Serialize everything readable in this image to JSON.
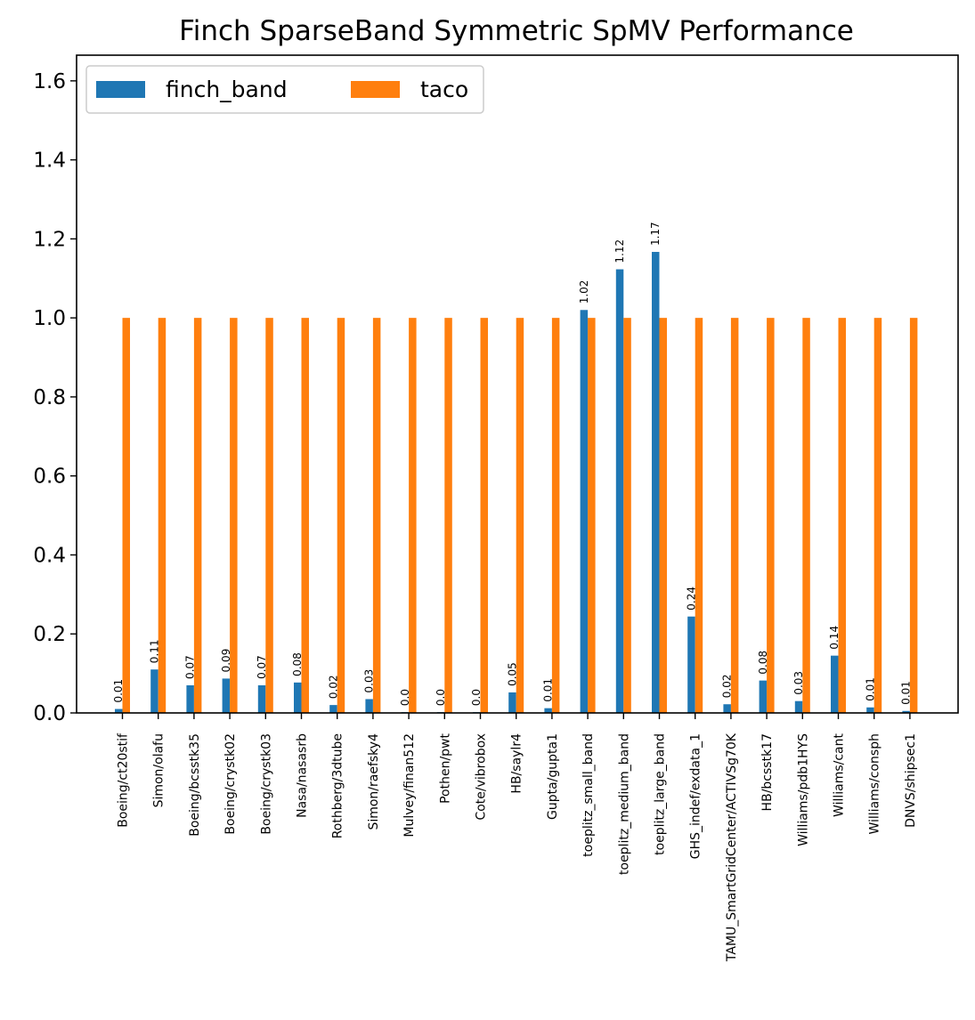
{
  "colors": {
    "finch_band": "#1f77b4",
    "taco": "#ff7f0e"
  },
  "chart_data": {
    "type": "bar",
    "title": "Finch SparseBand Symmetric SpMV Performance",
    "xlabel": "",
    "ylabel": "",
    "ylim": [
      0,
      1.665
    ],
    "yticks": [
      0.0,
      0.2,
      0.4,
      0.6,
      0.8,
      1.0,
      1.2,
      1.4,
      1.6
    ],
    "ytick_labels": [
      "0.0",
      "0.2",
      "0.4",
      "0.6",
      "0.8",
      "1.0",
      "1.2",
      "1.4",
      "1.6"
    ],
    "grid": false,
    "legend_position": "top-left",
    "legend_columns": 2,
    "categories": [
      "Boeing/ct20stif",
      "Simon/olafu",
      "Boeing/bcsstk35",
      "Boeing/crystk02",
      "Boeing/crystk03",
      "Nasa/nasasrb",
      "Rothberg/3dtube",
      "Simon/raefsky4",
      "Mulvey/finan512",
      "Pothen/pwt",
      "Cote/vibrobox",
      "HB/saylr4",
      "Gupta/gupta1",
      "toeplitz_small_band",
      "toeplitz_medium_band",
      "toeplitz_large_band",
      "GHS_indef/exdata_1",
      "TAMU_SmartGridCenter/ACTIVSg70K",
      "HB/bcsstk17",
      "Williams/pdb1HYS",
      "Williams/cant",
      "Williams/consph",
      "DNVS/shipsec1"
    ],
    "series": [
      {
        "name": "finch_band",
        "values": [
          0.01,
          0.11,
          0.07,
          0.087,
          0.07,
          0.077,
          0.02,
          0.035,
          0.002,
          0.002,
          0.002,
          0.052,
          0.012,
          1.02,
          1.123,
          1.167,
          0.244,
          0.022,
          0.082,
          0.03,
          0.145,
          0.014,
          0.005
        ],
        "labels": [
          "0.01",
          "0.11",
          "0.07",
          "0.09",
          "0.07",
          "0.08",
          "0.02",
          "0.03",
          "0.0",
          "0.0",
          "0.0",
          "0.05",
          "0.01",
          "1.02",
          "1.12",
          "1.17",
          "0.24",
          "0.02",
          "0.08",
          "0.03",
          "0.14",
          "0.01",
          "0.01"
        ]
      },
      {
        "name": "taco",
        "values": [
          1,
          1,
          1,
          1,
          1,
          1,
          1,
          1,
          1,
          1,
          1,
          1,
          1,
          1,
          1,
          1,
          1,
          1,
          1,
          1,
          1,
          1,
          1
        ]
      }
    ]
  }
}
